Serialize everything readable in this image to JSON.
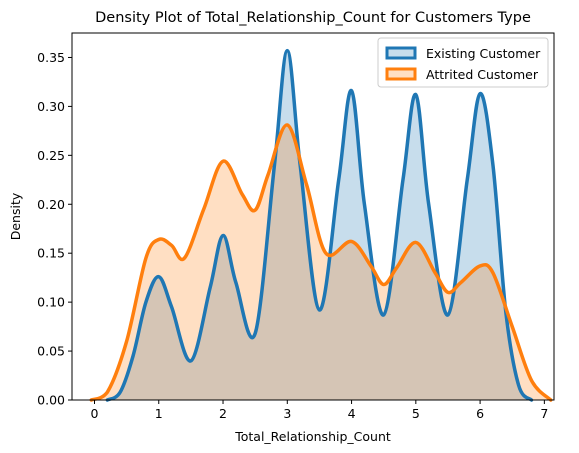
{
  "chart_data": {
    "type": "area",
    "title": "Density Plot of Total_Relationship_Count for Customers Type",
    "xlabel": "Total_Relationship_Count",
    "ylabel": "Density",
    "xlim": [
      -0.35,
      7.15
    ],
    "ylim": [
      0,
      0.375
    ],
    "xticks": [
      0,
      1,
      2,
      3,
      4,
      5,
      6,
      7
    ],
    "yticks": [
      0.0,
      0.05,
      0.1,
      0.15,
      0.2,
      0.25,
      0.3,
      0.35
    ],
    "ytick_labels": [
      "0.00",
      "0.05",
      "0.10",
      "0.15",
      "0.20",
      "0.25",
      "0.30",
      "0.35"
    ],
    "grid": false,
    "legend_position": "top-right",
    "series": [
      {
        "name": "Existing Customer",
        "color": "#1f77b4",
        "x": [
          0.2,
          0.4,
          0.6,
          0.8,
          1.0,
          1.2,
          1.5,
          1.8,
          2.0,
          2.2,
          2.5,
          2.8,
          3.0,
          3.2,
          3.5,
          3.8,
          4.0,
          4.2,
          4.5,
          4.8,
          5.0,
          5.2,
          5.5,
          5.8,
          6.0,
          6.2,
          6.4,
          6.6,
          6.8
        ],
        "values": [
          0.0,
          0.008,
          0.045,
          0.1,
          0.126,
          0.095,
          0.04,
          0.115,
          0.168,
          0.12,
          0.068,
          0.24,
          0.357,
          0.24,
          0.092,
          0.225,
          0.316,
          0.2,
          0.087,
          0.225,
          0.312,
          0.2,
          0.087,
          0.225,
          0.313,
          0.24,
          0.09,
          0.015,
          0.0
        ]
      },
      {
        "name": "Attrited Customer",
        "color": "#ff7f0e",
        "x": [
          -0.05,
          0.2,
          0.5,
          0.8,
          1.0,
          1.2,
          1.4,
          1.7,
          2.0,
          2.3,
          2.5,
          2.7,
          3.0,
          3.3,
          3.6,
          4.0,
          4.3,
          4.5,
          4.7,
          5.0,
          5.3,
          5.5,
          5.7,
          6.0,
          6.2,
          6.5,
          6.8,
          7.1
        ],
        "values": [
          0.0,
          0.008,
          0.06,
          0.145,
          0.164,
          0.158,
          0.145,
          0.195,
          0.244,
          0.21,
          0.194,
          0.23,
          0.281,
          0.22,
          0.15,
          0.162,
          0.137,
          0.118,
          0.135,
          0.161,
          0.13,
          0.11,
          0.12,
          0.137,
          0.13,
          0.075,
          0.02,
          0.0
        ]
      }
    ]
  }
}
